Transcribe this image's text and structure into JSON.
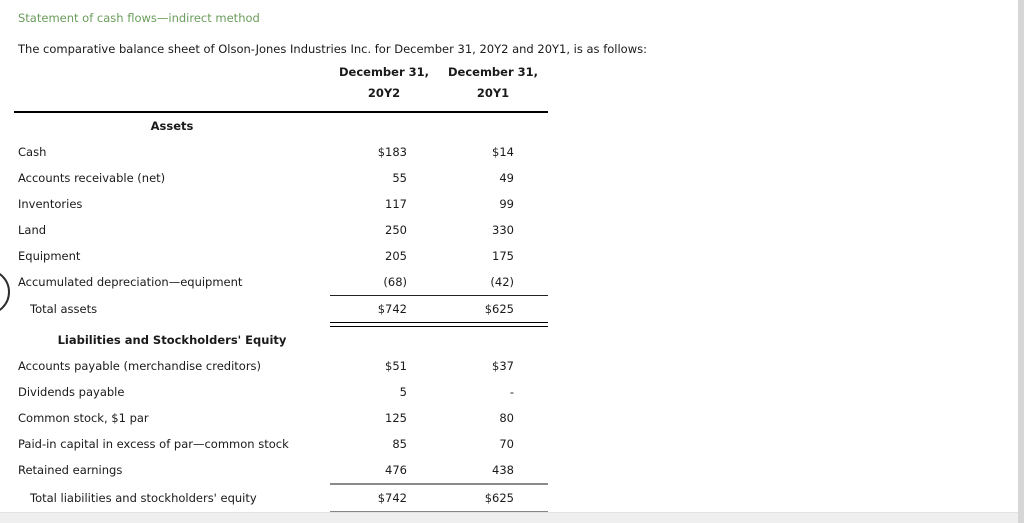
{
  "header": {
    "title": "Statement of cash flows—indirect method",
    "intro": "The comparative balance sheet of Olson-Jones Industries Inc. for December 31, 20Y2 and 20Y1, is as follows:"
  },
  "colors": {
    "title_green": "#6a9d5c",
    "rule_black": "#000000",
    "final_rule_gray": "#868686"
  },
  "table": {
    "columns": [
      {
        "line1": "December 31,",
        "line2": "20Y2"
      },
      {
        "line1": "December 31,",
        "line2": "20Y1"
      }
    ],
    "rows": [
      {
        "type": "section",
        "label": "Assets"
      },
      {
        "type": "row",
        "label": "Cash",
        "y2": "$183",
        "y1": "$14"
      },
      {
        "type": "row",
        "label": "Accounts receivable (net)",
        "y2": "55",
        "y1": "49"
      },
      {
        "type": "row",
        "label": "Inventories",
        "y2": "117",
        "y1": "99"
      },
      {
        "type": "row",
        "label": "Land",
        "y2": "250",
        "y1": "330"
      },
      {
        "type": "row",
        "label": "Equipment",
        "y2": "205",
        "y1": "175"
      },
      {
        "type": "row",
        "label": "Accumulated depreciation—equipment",
        "y2": "(68)",
        "y1": "(42)"
      },
      {
        "type": "total",
        "label": "Total assets",
        "y2": "$742",
        "y1": "$625"
      },
      {
        "type": "section",
        "label": "Liabilities and Stockholders' Equity"
      },
      {
        "type": "row",
        "label": "Accounts payable (merchandise creditors)",
        "y2": "$51",
        "y1": "$37"
      },
      {
        "type": "row",
        "label": "Dividends payable",
        "y2": "5",
        "y1": "-"
      },
      {
        "type": "row",
        "label": "Common stock, $1 par",
        "y2": "125",
        "y1": "80"
      },
      {
        "type": "row",
        "label": "Paid-in capital in excess of par—common stock",
        "y2": "85",
        "y1": "70"
      },
      {
        "type": "row",
        "label": "Retained earnings",
        "y2": "476",
        "y1": "438"
      },
      {
        "type": "total",
        "label": "Total liabilities and stockholders' equity",
        "y2": "$742",
        "y1": "$625"
      }
    ]
  }
}
